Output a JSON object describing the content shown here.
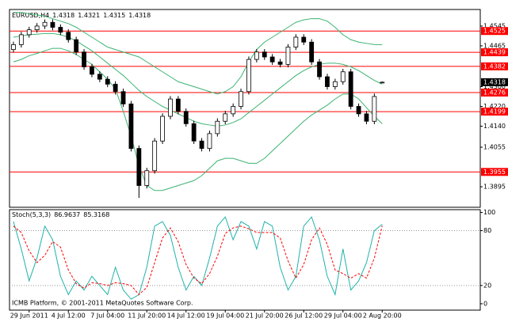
{
  "chart_data": [
    {
      "type": "candlestick",
      "title": "EURUSD,H4",
      "categories": [
        null,
        null,
        "29 Jun 2011",
        null,
        null,
        null,
        null,
        "4 Jul 12:00",
        null,
        null,
        null,
        null,
        "7 Jul 04:00",
        null,
        null,
        null,
        null,
        "11 Jul 20:00",
        null,
        null,
        null,
        null,
        "14 Jul 12:00",
        null,
        null,
        null,
        null,
        "19 Jul 04:00",
        null,
        null,
        null,
        null,
        "21 Jul 20:00",
        null,
        null,
        null,
        null,
        "26 Jul 12:00",
        null,
        null,
        null,
        null,
        "29 Jul 04:00",
        null,
        null,
        null,
        null,
        "2 Aug 20:00"
      ],
      "open": [
        1.445,
        1.447,
        1.451,
        1.453,
        1.4545,
        1.456,
        1.454,
        1.452,
        1.449,
        1.444,
        1.438,
        1.435,
        1.433,
        1.431,
        1.428,
        1.423,
        1.405,
        1.39,
        1.396,
        1.408,
        1.418,
        1.425,
        1.42,
        1.415,
        1.408,
        1.405,
        1.411,
        1.416,
        1.419,
        1.422,
        1.428,
        1.441,
        1.444,
        1.442,
        1.44,
        1.439,
        1.446,
        1.45,
        1.448,
        1.44,
        1.434,
        1.43,
        1.432,
        1.436,
        1.422,
        1.419,
        1.416,
        1.4318
      ],
      "high": [
        1.4482,
        1.4522,
        1.4542,
        1.4557,
        1.4572,
        1.4572,
        1.4552,
        1.4532,
        1.4502,
        1.4452,
        1.4392,
        1.4362,
        1.4342,
        1.4322,
        1.4292,
        1.4242,
        1.4062,
        1.3972,
        1.4092,
        1.4192,
        1.4262,
        1.4262,
        1.4212,
        1.4162,
        1.4092,
        1.4122,
        1.4172,
        1.4202,
        1.4232,
        1.4292,
        1.4422,
        1.4452,
        1.4452,
        1.4432,
        1.4412,
        1.4472,
        1.4512,
        1.4512,
        1.4492,
        1.4412,
        1.4352,
        1.4332,
        1.4372,
        1.4372,
        1.4232,
        1.4202,
        1.4272,
        1.4321
      ],
      "low": [
        1.4438,
        1.4458,
        1.4498,
        1.4518,
        1.4533,
        1.4528,
        1.4508,
        1.4478,
        1.4428,
        1.4368,
        1.4338,
        1.4318,
        1.4298,
        1.4268,
        1.4218,
        1.4038,
        1.385,
        1.3888,
        1.3948,
        1.4068,
        1.4168,
        1.4188,
        1.4138,
        1.4068,
        1.4038,
        1.4038,
        1.4098,
        1.4148,
        1.4178,
        1.4208,
        1.4268,
        1.4398,
        1.4408,
        1.4388,
        1.4378,
        1.4378,
        1.4448,
        1.4468,
        1.4388,
        1.4328,
        1.4288,
        1.4288,
        1.4308,
        1.4208,
        1.4178,
        1.4148,
        1.4148,
        1.4315
      ],
      "close": [
        1.447,
        1.451,
        1.453,
        1.4545,
        1.456,
        1.454,
        1.452,
        1.449,
        1.444,
        1.438,
        1.435,
        1.433,
        1.431,
        1.428,
        1.423,
        1.405,
        1.39,
        1.396,
        1.408,
        1.418,
        1.425,
        1.42,
        1.415,
        1.408,
        1.405,
        1.411,
        1.416,
        1.419,
        1.422,
        1.428,
        1.441,
        1.444,
        1.442,
        1.44,
        1.439,
        1.446,
        1.45,
        1.448,
        1.44,
        1.434,
        1.43,
        1.432,
        1.436,
        1.422,
        1.419,
        1.416,
        1.426,
        1.4318
      ],
      "bull_color": "#ffffff",
      "bear_color": "#000000",
      "series": [
        {
          "color": "#3cb371",
          "values": [
            1.46,
            1.46,
            1.4595,
            1.459,
            1.4585,
            1.4575,
            1.4565,
            1.4555,
            1.454,
            1.452,
            1.45,
            1.448,
            1.446,
            1.445,
            1.444,
            1.443,
            1.442,
            1.44,
            1.438,
            1.436,
            1.434,
            1.432,
            1.431,
            1.43,
            1.429,
            1.428,
            1.427,
            1.428,
            1.43,
            1.434,
            1.44,
            1.445,
            1.448,
            1.45,
            1.452,
            1.454,
            1.456,
            1.457,
            1.4575,
            1.4575,
            1.4565,
            1.454,
            1.451,
            1.449,
            1.448,
            1.4475,
            1.447,
            1.447
          ]
        },
        {
          "color": "#3cb371",
          "values": [
            1.45,
            1.4505,
            1.451,
            1.4512,
            1.4515,
            1.4515,
            1.451,
            1.45,
            1.4485,
            1.4465,
            1.4445,
            1.442,
            1.4395,
            1.437,
            1.4345,
            1.4315,
            1.4285,
            1.426,
            1.424,
            1.422,
            1.4205,
            1.419,
            1.4175,
            1.416,
            1.415,
            1.4145,
            1.414,
            1.4145,
            1.4155,
            1.417,
            1.4195,
            1.422,
            1.4245,
            1.427,
            1.4295,
            1.432,
            1.4345,
            1.4365,
            1.438,
            1.439,
            1.4395,
            1.4395,
            1.439,
            1.438,
            1.4365,
            1.4345,
            1.4325,
            1.431
          ]
        },
        {
          "color": "#3cb371",
          "values": [
            1.44,
            1.441,
            1.4425,
            1.4434,
            1.4445,
            1.4455,
            1.4455,
            1.4445,
            1.443,
            1.441,
            1.439,
            1.436,
            1.433,
            1.429,
            1.42,
            1.41,
            1.398,
            1.39,
            1.388,
            1.388,
            1.389,
            1.39,
            1.391,
            1.392,
            1.394,
            1.397,
            1.4,
            1.401,
            1.401,
            1.4,
            1.399,
            1.399,
            1.401,
            1.404,
            1.407,
            1.41,
            1.413,
            1.416,
            1.4185,
            1.4205,
            1.4225,
            1.425,
            1.427,
            1.427,
            1.425,
            1.4215,
            1.418,
            1.415
          ]
        }
      ],
      "levels": [
        1.4525,
        1.4439,
        1.4382,
        1.4276,
        1.4199,
        1.3955
      ],
      "level_color": "#ff0000",
      "ylim": [
        1.3812,
        1.4612
      ],
      "yticks": [
        1.4545,
        1.4465,
        {
          "value": 1.43,
          "label": "1.4300"
        },
        {
          "value": 1.422,
          "label": "1.4220"
        },
        {
          "value": 1.414,
          "label": "1.4140"
        },
        1.4055,
        1.3895
      ],
      "grid": false
    },
    {
      "type": "stochastic",
      "title": "Stoch(5,3,3)",
      "series": [
        {
          "color": "#20b2aa",
          "style": "solid",
          "values": [
            90,
            60,
            25,
            50,
            85,
            70,
            30,
            10,
            25,
            15,
            30,
            20,
            10,
            40,
            15,
            5,
            10,
            40,
            85,
            90,
            75,
            40,
            15,
            30,
            20,
            50,
            85,
            95,
            70,
            90,
            85,
            60,
            90,
            85,
            40,
            15,
            30,
            85,
            95,
            70,
            30,
            10,
            60,
            15,
            25,
            45,
            80,
            86.9637
          ]
        },
        {
          "color": "#ff0000",
          "style": "dashed",
          "values": [
            85,
            78,
            58,
            45,
            53,
            68,
            62,
            37,
            22,
            17,
            23,
            22,
            20,
            23,
            22,
            20,
            10,
            18,
            45,
            72,
            83,
            68,
            43,
            28,
            22,
            33,
            52,
            77,
            83,
            85,
            82,
            78,
            78,
            78,
            72,
            47,
            28,
            43,
            70,
            83,
            65,
            37,
            33,
            28,
            33,
            28,
            50,
            85.3168
          ]
        }
      ],
      "levels": [
        80,
        20
      ],
      "ylim": [
        -7,
        103
      ],
      "yticks": [
        100,
        80,
        20,
        0
      ],
      "annotation": "ICMB Platform, © 2001-2011 MetaQuotes Software Corp."
    }
  ]
}
